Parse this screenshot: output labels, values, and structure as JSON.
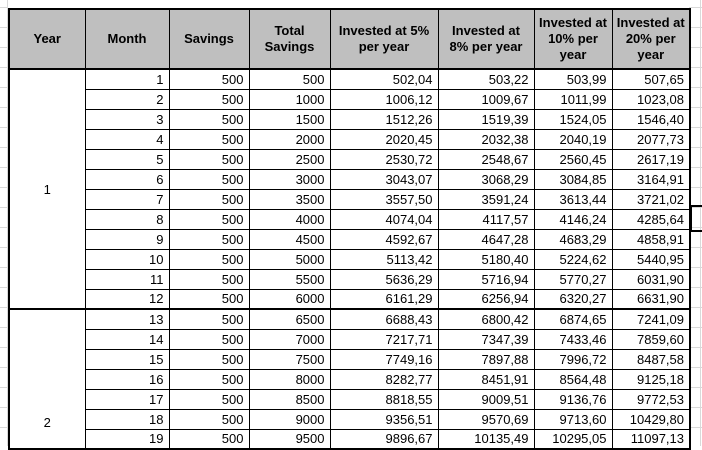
{
  "colors": {
    "header_bg": "#bfbfbf",
    "border": "#000000",
    "gridline": "#d9d9d9",
    "selection": "#000000"
  },
  "table": {
    "headers": [
      "Year",
      "Month",
      "Savings",
      "Total Savings",
      "Invested at 5% per year",
      "Invested at 8% per year",
      "Invested at 10% per year",
      "Invested at 20% per year"
    ],
    "year_blocks": [
      {
        "year": "1",
        "rows": [
          [
            "1",
            "500",
            "500",
            "502,04",
            "503,22",
            "503,99",
            "507,65"
          ],
          [
            "2",
            "500",
            "1000",
            "1006,12",
            "1009,67",
            "1011,99",
            "1023,08"
          ],
          [
            "3",
            "500",
            "1500",
            "1512,26",
            "1519,39",
            "1524,05",
            "1546,40"
          ],
          [
            "4",
            "500",
            "2000",
            "2020,45",
            "2032,38",
            "2040,19",
            "2077,73"
          ],
          [
            "5",
            "500",
            "2500",
            "2530,72",
            "2548,67",
            "2560,45",
            "2617,19"
          ],
          [
            "6",
            "500",
            "3000",
            "3043,07",
            "3068,29",
            "3084,85",
            "3164,91"
          ],
          [
            "7",
            "500",
            "3500",
            "3557,50",
            "3591,24",
            "3613,44",
            "3721,02"
          ],
          [
            "8",
            "500",
            "4000",
            "4074,04",
            "4117,57",
            "4146,24",
            "4285,64"
          ],
          [
            "9",
            "500",
            "4500",
            "4592,67",
            "4647,28",
            "4683,29",
            "4858,91"
          ],
          [
            "10",
            "500",
            "5000",
            "5113,42",
            "5180,40",
            "5224,62",
            "5440,95"
          ],
          [
            "11",
            "500",
            "5500",
            "5636,29",
            "5716,94",
            "5770,27",
            "6031,90"
          ],
          [
            "12",
            "500",
            "6000",
            "6161,29",
            "6256,94",
            "6320,27",
            "6631,90"
          ]
        ]
      },
      {
        "year": "2",
        "rows": [
          [
            "13",
            "500",
            "6500",
            "6688,43",
            "6800,42",
            "6874,65",
            "7241,09"
          ],
          [
            "14",
            "500",
            "7000",
            "7217,71",
            "7347,39",
            "7433,46",
            "7859,60"
          ],
          [
            "15",
            "500",
            "7500",
            "7749,16",
            "7897,88",
            "7996,72",
            "8487,58"
          ],
          [
            "16",
            "500",
            "8000",
            "8282,77",
            "8451,91",
            "8564,48",
            "9125,18"
          ],
          [
            "17",
            "500",
            "8500",
            "8818,55",
            "9009,51",
            "9136,76",
            "9772,53"
          ],
          [
            "18",
            "500",
            "9000",
            "9356,51",
            "9570,69",
            "9713,60",
            "10429,80"
          ],
          [
            "19",
            "500",
            "9500",
            "9896,67",
            "10135,49",
            "10295,05",
            "11097,13"
          ]
        ]
      }
    ]
  }
}
